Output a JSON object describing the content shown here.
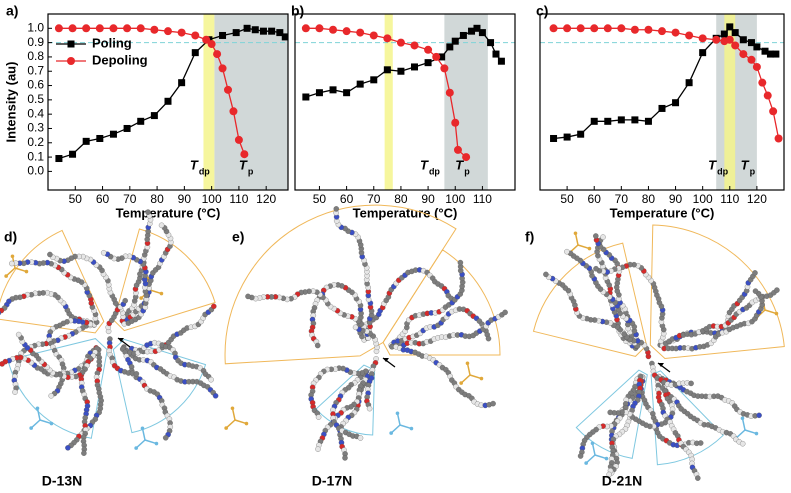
{
  "chart_data": [
    {
      "type": "line",
      "panel": "a)",
      "xlabel": "Temperature (°C)",
      "ylabel": "Intensity (au)",
      "xlim": [
        40,
        128
      ],
      "xticks": [
        50,
        60,
        70,
        80,
        90,
        100,
        110,
        120
      ],
      "ylim": [
        -0.13,
        1.1
      ],
      "yticks": [
        {
          "value": 0,
          "label": "0.0"
        },
        0.1,
        0.2,
        0.3,
        0.4,
        0.5,
        0.6,
        0.7,
        0.8,
        0.9,
        {
          "value": 1,
          "label": "1.0"
        }
      ],
      "hline": 0.9,
      "legend": "upper left",
      "bands": [
        {
          "x": [
            101,
            128
          ],
          "color": "#c9d1d1"
        },
        {
          "x": [
            97,
            101
          ],
          "color": "#f4f48c"
        }
      ],
      "annotations": [
        {
          "text": "T",
          "sub": "dp"
        },
        {
          "text": "T",
          "sub": "p"
        }
      ],
      "series": [
        {
          "name": "Poling",
          "color": "#000000",
          "marker": "square",
          "x": [
            44,
            49,
            54,
            59,
            64,
            69,
            74,
            79,
            84,
            89,
            94,
            99,
            104,
            109,
            113,
            116,
            119,
            122,
            125,
            127
          ],
          "values": [
            0.09,
            0.12,
            0.21,
            0.23,
            0.26,
            0.3,
            0.35,
            0.39,
            0.49,
            0.62,
            0.83,
            0.92,
            0.95,
            0.97,
            1.0,
            0.99,
            0.98,
            0.98,
            0.97,
            0.94
          ]
        },
        {
          "name": "Depoling",
          "color": "#e8282b",
          "marker": "circle",
          "x": [
            44,
            49,
            54,
            59,
            64,
            69,
            74,
            79,
            84,
            89,
            94,
            98,
            100,
            102,
            104,
            106,
            108,
            110,
            112
          ],
          "values": [
            1.0,
            1.0,
            1.0,
            1.0,
            1.0,
            1.0,
            1.0,
            0.99,
            0.98,
            0.97,
            0.95,
            0.92,
            0.89,
            0.82,
            0.72,
            0.57,
            0.42,
            0.22,
            0.12
          ]
        }
      ]
    },
    {
      "type": "line",
      "panel": "b)",
      "xlabel": "Temperature (°C)",
      "xlim": [
        41,
        122
      ],
      "xticks": [
        50,
        60,
        70,
        80,
        90,
        100,
        110
      ],
      "ylim": [
        -0.13,
        1.1
      ],
      "hline": 0.9,
      "bands": [
        {
          "x": [
            96,
            112
          ],
          "color": "#c9d1d1"
        },
        {
          "x": [
            74,
            77
          ],
          "color": "#f4f48c"
        }
      ],
      "annotations": [
        {
          "text": "T",
          "sub": "dp"
        },
        {
          "text": "T",
          "sub": "p"
        }
      ],
      "series": [
        {
          "color": "#000000",
          "marker": "square",
          "x": [
            45,
            50,
            55,
            60,
            65,
            70,
            75,
            80,
            85,
            90,
            95,
            98,
            100,
            103,
            106,
            108,
            110,
            113,
            115,
            117
          ],
          "values": [
            0.52,
            0.55,
            0.57,
            0.55,
            0.61,
            0.64,
            0.71,
            0.7,
            0.73,
            0.76,
            0.8,
            0.87,
            0.91,
            0.95,
            0.98,
            1.0,
            0.97,
            0.9,
            0.82,
            0.77
          ]
        },
        {
          "color": "#e8282b",
          "marker": "circle",
          "x": [
            45,
            50,
            55,
            60,
            65,
            70,
            75,
            80,
            85,
            90,
            93,
            96,
            98,
            100,
            101,
            104
          ],
          "values": [
            1.0,
            1.0,
            0.99,
            0.98,
            0.97,
            0.95,
            0.93,
            0.9,
            0.88,
            0.85,
            0.8,
            0.72,
            0.55,
            0.34,
            0.15,
            0.1
          ]
        }
      ]
    },
    {
      "type": "line",
      "panel": "c)",
      "xlabel": "Temperature (°C)",
      "xlim": [
        40,
        130
      ],
      "xticks": [
        50,
        60,
        70,
        80,
        90,
        100,
        110,
        120
      ],
      "ylim": [
        -0.13,
        1.1
      ],
      "hline": 0.9,
      "bands": [
        {
          "x": [
            105,
            120
          ],
          "color": "#c9d1d1"
        },
        {
          "x": [
            108,
            112
          ],
          "color": "#f4f48c"
        }
      ],
      "annotations": [
        {
          "text": "T",
          "sub": "dp"
        },
        {
          "text": "T",
          "sub": "p"
        }
      ],
      "series": [
        {
          "color": "#000000",
          "marker": "square",
          "x": [
            45,
            50,
            55,
            60,
            65,
            70,
            75,
            80,
            85,
            90,
            95,
            100,
            105,
            108,
            110,
            112,
            115,
            118,
            120,
            123,
            125,
            127
          ],
          "values": [
            0.23,
            0.24,
            0.26,
            0.35,
            0.35,
            0.36,
            0.36,
            0.35,
            0.44,
            0.48,
            0.62,
            0.83,
            0.93,
            0.96,
            1.01,
            0.97,
            0.92,
            0.9,
            0.87,
            0.84,
            0.82,
            0.82
          ]
        },
        {
          "color": "#e8282b",
          "marker": "circle",
          "x": [
            45,
            50,
            55,
            60,
            65,
            70,
            75,
            80,
            85,
            90,
            95,
            100,
            105,
            108,
            110,
            112,
            115,
            118,
            120,
            122,
            124,
            126,
            128
          ],
          "values": [
            1.0,
            1.0,
            1.0,
            1.0,
            1.0,
            1.0,
            0.99,
            0.99,
            0.98,
            0.97,
            0.95,
            0.93,
            0.92,
            0.91,
            0.92,
            0.88,
            0.82,
            0.78,
            0.73,
            0.62,
            0.53,
            0.42,
            0.23
          ]
        }
      ]
    }
  ],
  "images": [
    {
      "label": "d)",
      "caption": "D-13N"
    },
    {
      "label": "e)",
      "caption": "D-17N"
    },
    {
      "label": "f)",
      "caption": "D-21N"
    }
  ]
}
